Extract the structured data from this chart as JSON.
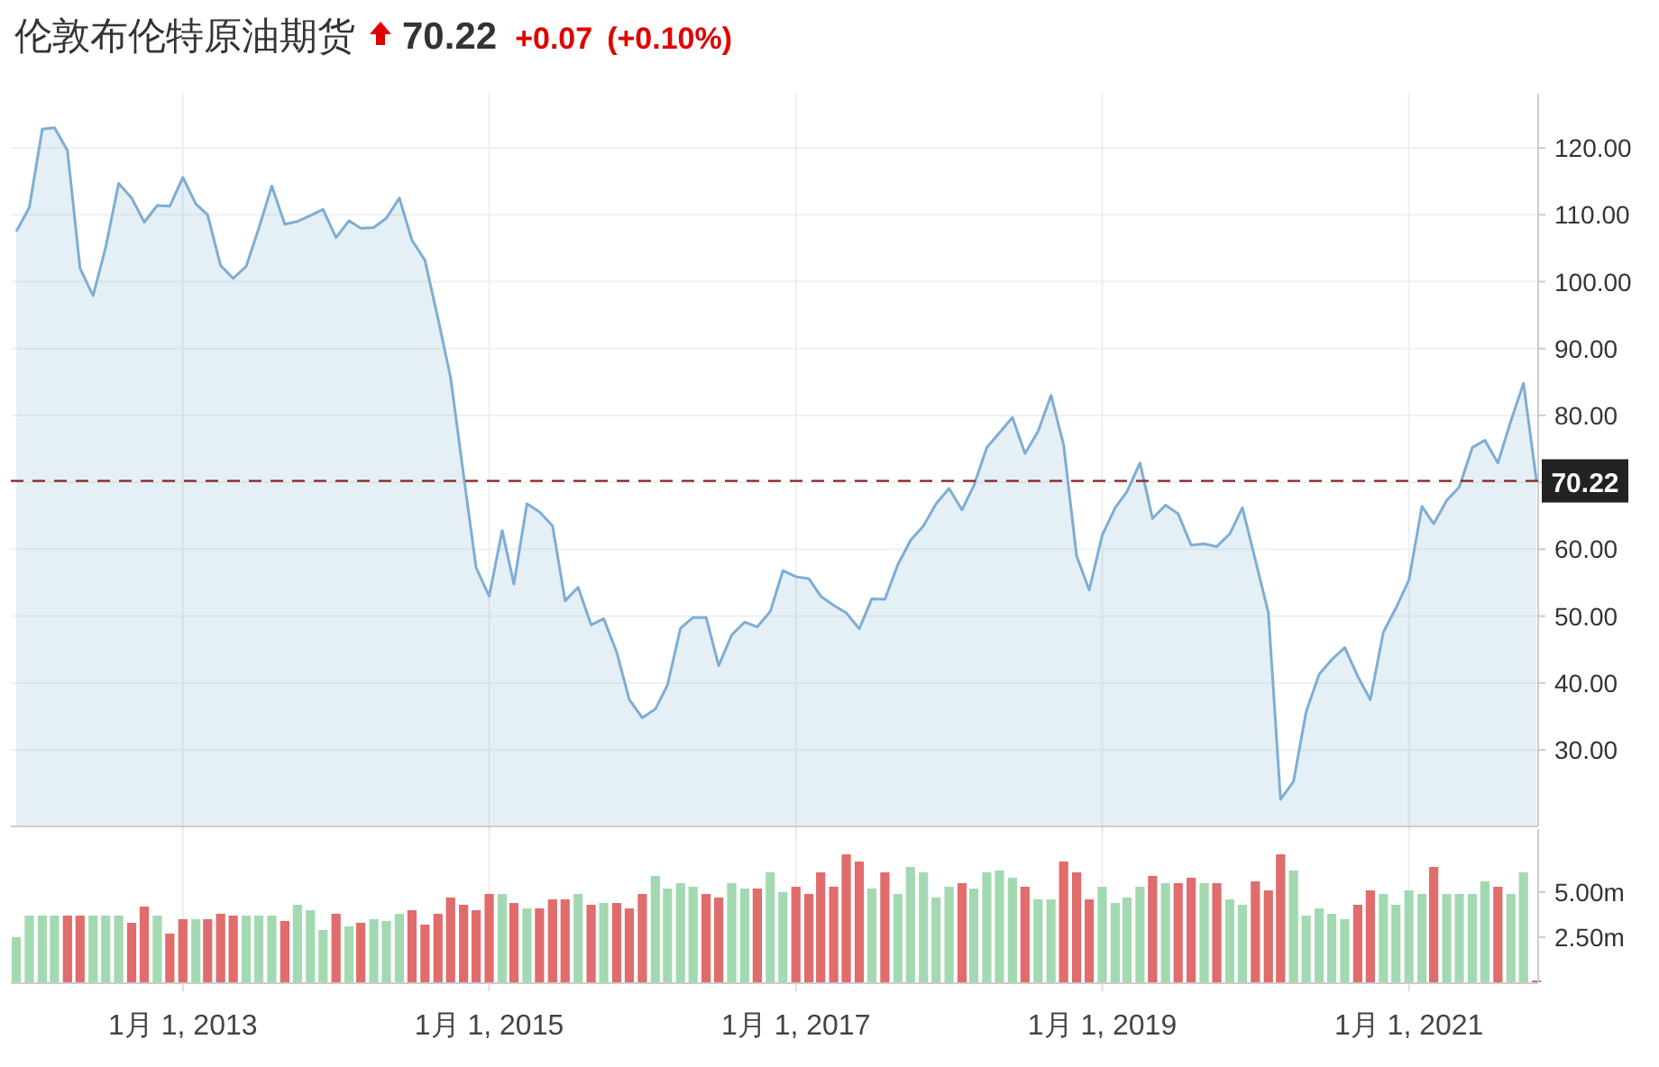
{
  "chart_data": [
    {
      "type": "area",
      "title": "伦敦布伦特原油期货",
      "annotations": [
        "70.22",
        "+0.07",
        "(+0.10%)"
      ],
      "x": [
        "2011-12",
        "2012-01",
        "2012-02",
        "2012-03",
        "2012-04",
        "2012-05",
        "2012-06",
        "2012-07",
        "2012-08",
        "2012-09",
        "2012-10",
        "2012-11",
        "2012-12",
        "2013-01",
        "2013-02",
        "2013-03",
        "2013-04",
        "2013-05",
        "2013-06",
        "2013-07",
        "2013-08",
        "2013-09",
        "2013-10",
        "2013-11",
        "2013-12",
        "2014-01",
        "2014-02",
        "2014-03",
        "2014-04",
        "2014-05",
        "2014-06",
        "2014-07",
        "2014-08",
        "2014-09",
        "2014-10",
        "2014-11",
        "2014-12",
        "2015-01",
        "2015-02",
        "2015-03",
        "2015-04",
        "2015-05",
        "2015-06",
        "2015-07",
        "2015-08",
        "2015-09",
        "2015-10",
        "2015-11",
        "2015-12",
        "2016-01",
        "2016-02",
        "2016-03",
        "2016-04",
        "2016-05",
        "2016-06",
        "2016-07",
        "2016-08",
        "2016-09",
        "2016-10",
        "2016-11",
        "2016-12",
        "2017-01",
        "2017-02",
        "2017-03",
        "2017-04",
        "2017-05",
        "2017-06",
        "2017-07",
        "2017-08",
        "2017-09",
        "2017-10",
        "2017-11",
        "2017-12",
        "2018-01",
        "2018-02",
        "2018-03",
        "2018-04",
        "2018-05",
        "2018-06",
        "2018-07",
        "2018-08",
        "2018-09",
        "2018-10",
        "2018-11",
        "2018-12",
        "2019-01",
        "2019-02",
        "2019-03",
        "2019-04",
        "2019-05",
        "2019-06",
        "2019-07",
        "2019-08",
        "2019-09",
        "2019-10",
        "2019-11",
        "2019-12",
        "2020-01",
        "2020-02",
        "2020-03",
        "2020-04",
        "2020-05",
        "2020-06",
        "2020-07",
        "2020-08",
        "2020-09",
        "2020-10",
        "2020-11",
        "2020-12",
        "2021-01",
        "2021-02",
        "2021-03",
        "2021-04",
        "2021-05",
        "2021-06",
        "2021-07",
        "2021-08",
        "2021-09",
        "2021-10",
        "2021-11"
      ],
      "series": [
        {
          "color": "#7eadd4",
          "values": [
            107.5,
            111.1,
            122.8,
            123.0,
            119.6,
            102.0,
            97.9,
            105.1,
            114.7,
            112.5,
            108.9,
            111.4,
            111.3,
            115.6,
            111.6,
            110.0,
            102.4,
            100.5,
            102.3,
            108.0,
            114.3,
            108.6,
            109.0,
            109.9,
            110.8,
            106.6,
            109.1,
            108.0,
            108.1,
            109.5,
            112.5,
            106.2,
            103.2,
            94.5,
            85.7,
            71.1,
            57.2,
            53.0,
            62.8,
            54.8,
            66.8,
            65.6,
            63.5,
            52.3,
            54.3,
            48.7,
            49.6,
            44.6,
            37.5,
            34.8,
            36.1,
            39.7,
            48.2,
            49.8,
            49.8,
            42.6,
            47.2,
            49.1,
            48.4,
            50.7,
            56.8,
            55.9,
            55.6,
            53.0,
            51.6,
            50.5,
            48.1,
            52.6,
            52.5,
            57.7,
            61.3,
            63.5,
            66.8,
            69.1,
            65.9,
            69.5,
            75.2,
            77.4,
            79.7,
            74.3,
            77.6,
            83.0,
            75.6,
            59.0,
            53.9,
            62.1,
            66.2,
            68.6,
            72.9,
            64.6,
            66.6,
            65.3,
            60.6,
            60.8,
            60.4,
            62.3,
            66.2,
            58.4,
            50.5,
            22.6,
            25.3,
            35.7,
            41.3,
            43.5,
            45.3,
            41.0,
            37.5,
            47.6,
            51.2,
            55.4,
            66.4,
            63.8,
            67.3,
            69.3,
            75.2,
            76.3,
            72.9,
            79.2,
            84.8,
            70.22
          ]
        }
      ],
      "xlim": [
        "2011-11-18",
        "2021-11-05"
      ],
      "xticks": [
        {
          "value": "2013-01-01",
          "label": null
        },
        {
          "value": "2015-01-01",
          "label": null
        },
        {
          "value": "2017-01-01",
          "label": null
        },
        {
          "value": "2019-01-01",
          "label": null
        },
        {
          "value": "2021-01-01",
          "label": null
        }
      ],
      "ylim": [
        18.7,
        128.1
      ],
      "yticks": [
        {
          "value": 30,
          "label": "30.00"
        },
        {
          "value": 40,
          "label": "40.00"
        },
        {
          "value": 50,
          "label": "50.00"
        },
        {
          "value": 60,
          "label": "60.00"
        },
        {
          "value": 70,
          "label": null
        },
        {
          "value": 80,
          "label": "80.00"
        },
        {
          "value": 90,
          "label": "90.00"
        },
        {
          "value": 100,
          "label": "100.00"
        },
        {
          "value": 110,
          "label": "110.00"
        },
        {
          "value": 120,
          "label": "120.00"
        }
      ],
      "ref_lines": [
        {
          "axis": "y",
          "value": 70.22,
          "label": "70.22",
          "color": "#8b2020",
          "line_style": "dashed"
        }
      ],
      "grid": true,
      "tick_labels": "y"
    },
    {
      "type": "bar",
      "x": [
        "2011-12",
        "2012-01",
        "2012-02",
        "2012-03",
        "2012-04",
        "2012-05",
        "2012-06",
        "2012-07",
        "2012-08",
        "2012-09",
        "2012-10",
        "2012-11",
        "2012-12",
        "2013-01",
        "2013-02",
        "2013-03",
        "2013-04",
        "2013-05",
        "2013-06",
        "2013-07",
        "2013-08",
        "2013-09",
        "2013-10",
        "2013-11",
        "2013-12",
        "2014-01",
        "2014-02",
        "2014-03",
        "2014-04",
        "2014-05",
        "2014-06",
        "2014-07",
        "2014-08",
        "2014-09",
        "2014-10",
        "2014-11",
        "2014-12",
        "2015-01",
        "2015-02",
        "2015-03",
        "2015-04",
        "2015-05",
        "2015-06",
        "2015-07",
        "2015-08",
        "2015-09",
        "2015-10",
        "2015-11",
        "2015-12",
        "2016-01",
        "2016-02",
        "2016-03",
        "2016-04",
        "2016-05",
        "2016-06",
        "2016-07",
        "2016-08",
        "2016-09",
        "2016-10",
        "2016-11",
        "2016-12",
        "2017-01",
        "2017-02",
        "2017-03",
        "2017-04",
        "2017-05",
        "2017-06",
        "2017-07",
        "2017-08",
        "2017-09",
        "2017-10",
        "2017-11",
        "2017-12",
        "2018-01",
        "2018-02",
        "2018-03",
        "2018-04",
        "2018-05",
        "2018-06",
        "2018-07",
        "2018-08",
        "2018-09",
        "2018-10",
        "2018-11",
        "2018-12",
        "2019-01",
        "2019-02",
        "2019-03",
        "2019-04",
        "2019-05",
        "2019-06",
        "2019-07",
        "2019-08",
        "2019-09",
        "2019-10",
        "2019-11",
        "2019-12",
        "2020-01",
        "2020-02",
        "2020-03",
        "2020-04",
        "2020-05",
        "2020-06",
        "2020-07",
        "2020-08",
        "2020-09",
        "2020-10",
        "2020-11",
        "2020-12",
        "2021-01",
        "2021-02",
        "2021-03",
        "2021-04",
        "2021-05",
        "2021-06",
        "2021-07",
        "2021-08",
        "2021-09",
        "2021-10",
        "2021-11"
      ],
      "values": [
        2.5,
        3.7,
        3.7,
        3.7,
        3.7,
        3.7,
        3.7,
        3.7,
        3.7,
        3.3,
        4.2,
        3.7,
        2.7,
        3.5,
        3.5,
        3.5,
        3.8,
        3.7,
        3.7,
        3.7,
        3.7,
        3.4,
        4.3,
        4.0,
        2.9,
        3.8,
        3.1,
        3.3,
        3.5,
        3.4,
        3.8,
        4.0,
        3.2,
        3.8,
        4.7,
        4.3,
        4.0,
        4.9,
        4.9,
        4.4,
        4.1,
        4.1,
        4.6,
        4.6,
        4.9,
        4.3,
        4.4,
        4.4,
        4.1,
        4.9,
        5.9,
        5.2,
        5.5,
        5.3,
        4.9,
        4.7,
        5.5,
        5.2,
        5.2,
        6.1,
        5.0,
        5.3,
        4.9,
        6.1,
        5.3,
        7.1,
        6.7,
        5.2,
        6.1,
        4.9,
        6.4,
        6.1,
        4.7,
        5.3,
        5.5,
        5.2,
        6.1,
        6.2,
        5.8,
        5.3,
        4.6,
        4.6,
        6.7,
        6.1,
        4.6,
        5.3,
        4.4,
        4.7,
        5.3,
        5.9,
        5.5,
        5.5,
        5.8,
        5.5,
        5.5,
        4.6,
        4.3,
        5.6,
        5.1,
        7.1,
        6.2,
        3.7,
        4.1,
        3.8,
        3.5,
        4.3,
        5.1,
        4.9,
        4.3,
        5.1,
        4.9,
        6.4,
        4.9,
        4.9,
        4.9,
        5.6,
        5.3,
        4.9,
        6.1,
        0.1
      ],
      "colors": [
        "#a3d9b1",
        "#a3d9b1",
        "#a3d9b1",
        "#a3d9b1",
        "#e06c6c",
        "#e06c6c",
        "#a3d9b1",
        "#a3d9b1",
        "#a3d9b1",
        "#e06c6c",
        "#e06c6c",
        "#a3d9b1",
        "#e06c6c",
        "#e06c6c",
        "#a3d9b1",
        "#e06c6c",
        "#e06c6c",
        "#e06c6c",
        "#a3d9b1",
        "#a3d9b1",
        "#a3d9b1",
        "#e06c6c",
        "#a3d9b1",
        "#a3d9b1",
        "#a3d9b1",
        "#e06c6c",
        "#a3d9b1",
        "#e06c6c",
        "#a3d9b1",
        "#a3d9b1",
        "#a3d9b1",
        "#e06c6c",
        "#e06c6c",
        "#e06c6c",
        "#e06c6c",
        "#e06c6c",
        "#e06c6c",
        "#e06c6c",
        "#a3d9b1",
        "#e06c6c",
        "#a3d9b1",
        "#e06c6c",
        "#e06c6c",
        "#e06c6c",
        "#a3d9b1",
        "#e06c6c",
        "#a3d9b1",
        "#e06c6c",
        "#e06c6c",
        "#e06c6c",
        "#a3d9b1",
        "#a3d9b1",
        "#a3d9b1",
        "#a3d9b1",
        "#e06c6c",
        "#e06c6c",
        "#a3d9b1",
        "#a3d9b1",
        "#e06c6c",
        "#a3d9b1",
        "#a3d9b1",
        "#e06c6c",
        "#e06c6c",
        "#e06c6c",
        "#e06c6c",
        "#e06c6c",
        "#e06c6c",
        "#a3d9b1",
        "#e06c6c",
        "#a3d9b1",
        "#a3d9b1",
        "#a3d9b1",
        "#a3d9b1",
        "#a3d9b1",
        "#e06c6c",
        "#a3d9b1",
        "#a3d9b1",
        "#a3d9b1",
        "#a3d9b1",
        "#e06c6c",
        "#a3d9b1",
        "#a3d9b1",
        "#e06c6c",
        "#e06c6c",
        "#e06c6c",
        "#a3d9b1",
        "#a3d9b1",
        "#a3d9b1",
        "#a3d9b1",
        "#e06c6c",
        "#a3d9b1",
        "#e06c6c",
        "#e06c6c",
        "#a3d9b1",
        "#e06c6c",
        "#a3d9b1",
        "#a3d9b1",
        "#e06c6c",
        "#e06c6c",
        "#e06c6c",
        "#a3d9b1",
        "#a3d9b1",
        "#a3d9b1",
        "#a3d9b1",
        "#a3d9b1",
        "#e06c6c",
        "#e06c6c",
        "#a3d9b1",
        "#a3d9b1",
        "#a3d9b1",
        "#a3d9b1",
        "#e06c6c",
        "#a3d9b1",
        "#a3d9b1",
        "#a3d9b1",
        "#a3d9b1",
        "#e06c6c",
        "#a3d9b1",
        "#a3d9b1",
        "#e06c6c"
      ],
      "xlim": [
        "2011-11-18",
        "2021-11-05"
      ],
      "xticks": [
        {
          "value": "2013-01-01",
          "label": "1月 1, 2013"
        },
        {
          "value": "2015-01-01",
          "label": "1月 1, 2015"
        },
        {
          "value": "2017-01-01",
          "label": "1月 1, 2017"
        },
        {
          "value": "2019-01-01",
          "label": "1月 1, 2019"
        },
        {
          "value": "2021-01-01",
          "label": "1月 1, 2021"
        }
      ],
      "ylim": [
        0,
        8.5
      ],
      "yticks": [
        {
          "value": 2.5,
          "label": "2.50m"
        },
        {
          "value": 5,
          "label": "5.00m"
        }
      ],
      "grid": "x"
    }
  ]
}
